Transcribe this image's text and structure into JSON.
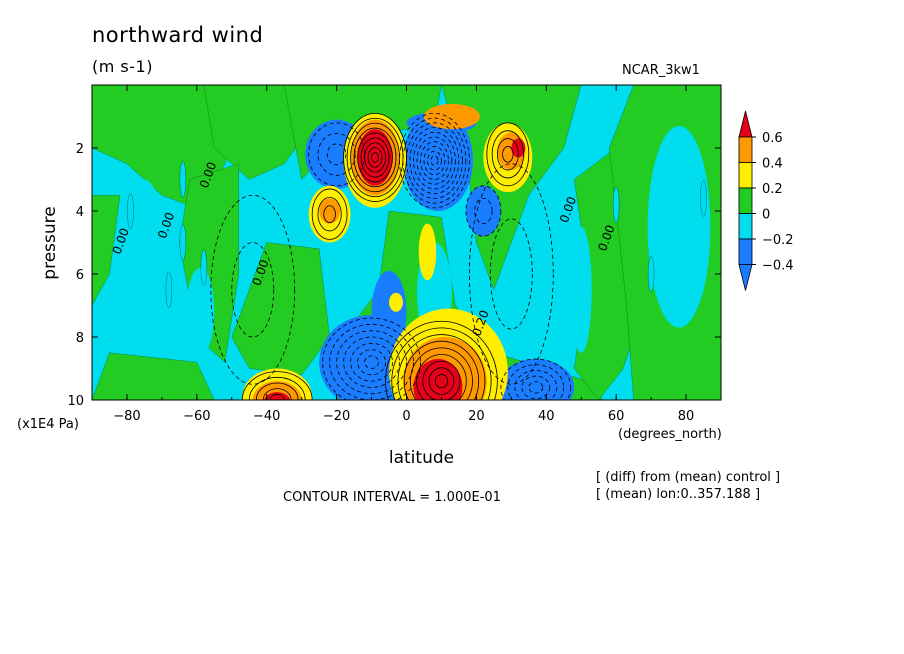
{
  "header": {
    "title": "northward wind",
    "units": "(m s-1)",
    "dataset": "NCAR_3kw1"
  },
  "footer": {
    "contour_interval": "CONTOUR INTERVAL = 1.000E-01",
    "note_diff": "[ (diff) from (mean) control ]",
    "note_mean": "[ (mean) lon:0..357.188 ]"
  },
  "colors": {
    "red": "#e6001a",
    "orange": "#ff9900",
    "yellow": "#ffee00",
    "green": "#22cc22",
    "cyan": "#00ddee",
    "blue": "#1a7cff"
  },
  "chart_data": {
    "type": "heatmap",
    "title": "northward wind",
    "units": "(m s-1)",
    "xlabel": "latitude",
    "xunits": "(degrees_north)",
    "ylabel": "pressure",
    "yunits": "(x1E4 Pa)",
    "xlim": [
      -90,
      90
    ],
    "ylim": [
      10,
      0
    ],
    "xticks": [
      -80,
      -60,
      -40,
      -20,
      0,
      20,
      40,
      60,
      80
    ],
    "yticks": [
      2,
      4,
      6,
      8,
      10
    ],
    "contour_interval": 0.1,
    "colorbar": {
      "levels": [
        0.6,
        0.4,
        0.2,
        0,
        -0.2,
        -0.4
      ],
      "labels": [
        "0.6",
        "0.4",
        "0.2",
        "0",
        "-0.2",
        "-0.4"
      ],
      "bins": [
        {
          "range": [
            0.6,
            null
          ],
          "color": "#e6001a"
        },
        {
          "range": [
            0.4,
            0.6
          ],
          "color": "#ff9900"
        },
        {
          "range": [
            0.2,
            0.4
          ],
          "color": "#ffee00"
        },
        {
          "range": [
            0,
            0.2
          ],
          "color": "#22cc22"
        },
        {
          "range": [
            -0.2,
            0
          ],
          "color": "#00ddee"
        },
        {
          "range": [
            -0.4,
            -0.2
          ],
          "color": "#1a7cff"
        },
        {
          "range": [
            null,
            -0.4
          ],
          "color": "#1a7cff"
        }
      ]
    },
    "contour_labels": [
      {
        "text": "0.00",
        "x": -82,
        "y": 5.4
      },
      {
        "text": "0.00",
        "x": -57,
        "y": 3.3
      },
      {
        "text": "0.00",
        "x": -69,
        "y": 4.9
      },
      {
        "text": "0.00",
        "x": -42,
        "y": 6.4
      },
      {
        "text": "0.00",
        "x": 46,
        "y": 4.4
      },
      {
        "text": "0.00",
        "x": 57,
        "y": 5.3
      },
      {
        "text": "0.20",
        "x": 21,
        "y": 8.0
      }
    ],
    "features": [
      {
        "name": "upper-max",
        "x": -9,
        "y": 2.3,
        "value": 0.6
      },
      {
        "name": "upper-min",
        "x": 8,
        "y": 2.3,
        "value": -0.6
      },
      {
        "name": "surface-max",
        "x": 8,
        "y": 9.4,
        "value": 0.6
      },
      {
        "name": "surface-max",
        "x": -37,
        "y": 9.7,
        "value": 0.6
      },
      {
        "name": "surface-min",
        "x": -10,
        "y": 8.9,
        "value": -0.4
      },
      {
        "name": "surface-min",
        "x": 37,
        "y": 9.6,
        "value": -0.4
      },
      {
        "name": "upper-max",
        "x": 30,
        "y": 2.2,
        "value": 0.4
      },
      {
        "name": "mid-max",
        "x": -22,
        "y": 4.1,
        "value": 0.4
      }
    ]
  }
}
